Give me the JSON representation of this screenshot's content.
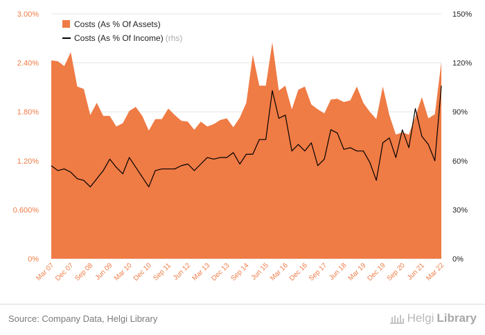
{
  "chart_data": {
    "type": "area+line",
    "legend": {
      "position": "top-left",
      "items": [
        {
          "label": "Costs (As % Of Assets)",
          "color": "#ef7b45",
          "kind": "area"
        },
        {
          "label": "Costs (As % Of Income)",
          "suffix": "(rhs)",
          "color": "#000000",
          "kind": "line"
        }
      ]
    },
    "left_axis": {
      "ticks": [
        "0%",
        "0.600%",
        "1.20%",
        "1.80%",
        "2.40%",
        "3.00%"
      ],
      "ylim": [
        0,
        3.0
      ]
    },
    "right_axis": {
      "ticks": [
        "0%",
        "30%",
        "60%",
        "90%",
        "120%",
        "150%"
      ],
      "ylim": [
        0,
        150
      ]
    },
    "x_tick_labels": [
      "Mar 07",
      "Dec 07",
      "Sep 08",
      "Jun 09",
      "Mar 10",
      "Dec 10",
      "Sep 11",
      "Jun 12",
      "Mar 13",
      "Dec 13",
      "Sep 14",
      "Jun 15",
      "Mar 16",
      "Dec 16",
      "Sep 17",
      "Jun 18",
      "Mar 19",
      "Dec 19",
      "Sep 20",
      "Jun 21",
      "Mar 22"
    ],
    "x": [
      "Mar 07",
      "Jun 07",
      "Sep 07",
      "Dec 07",
      "Mar 08",
      "Jun 08",
      "Sep 08",
      "Dec 08",
      "Mar 09",
      "Jun 09",
      "Sep 09",
      "Dec 09",
      "Mar 10",
      "Jun 10",
      "Sep 10",
      "Dec 10",
      "Mar 11",
      "Jun 11",
      "Sep 11",
      "Dec 11",
      "Mar 12",
      "Jun 12",
      "Sep 12",
      "Dec 12",
      "Mar 13",
      "Jun 13",
      "Sep 13",
      "Dec 13",
      "Mar 14",
      "Jun 14",
      "Sep 14",
      "Dec 14",
      "Mar 15",
      "Jun 15",
      "Sep 15",
      "Dec 15",
      "Mar 16",
      "Jun 16",
      "Sep 16",
      "Dec 16",
      "Mar 17",
      "Jun 17",
      "Sep 17",
      "Dec 17",
      "Mar 18",
      "Jun 18",
      "Sep 18",
      "Dec 18",
      "Mar 19",
      "Jun 19",
      "Sep 19",
      "Dec 19",
      "Mar 20",
      "Jun 20",
      "Sep 20",
      "Dec 20",
      "Mar 21",
      "Jun 21",
      "Sep 21",
      "Dec 21",
      "Mar 22"
    ],
    "series": [
      {
        "name": "Costs (As % Of Assets)",
        "axis": "left",
        "type": "area",
        "color": "#ef7b45",
        "values": [
          2.43,
          2.42,
          2.36,
          2.53,
          2.11,
          2.08,
          1.76,
          1.91,
          1.75,
          1.75,
          1.62,
          1.66,
          1.81,
          1.86,
          1.75,
          1.57,
          1.71,
          1.71,
          1.84,
          1.76,
          1.69,
          1.68,
          1.58,
          1.68,
          1.62,
          1.65,
          1.7,
          1.72,
          1.61,
          1.73,
          1.91,
          2.5,
          2.12,
          2.12,
          2.65,
          2.06,
          2.12,
          1.83,
          2.07,
          2.11,
          1.89,
          1.83,
          1.78,
          1.95,
          1.96,
          1.92,
          1.94,
          2.11,
          1.91,
          1.8,
          1.71,
          2.11,
          1.76,
          1.52,
          1.55,
          1.52,
          1.74,
          1.98,
          1.72,
          1.77,
          2.41
        ]
      },
      {
        "name": "Costs (As % Of Income)",
        "axis": "right",
        "type": "line",
        "color": "#000000",
        "values": [
          57,
          54,
          55,
          53,
          49,
          48,
          44,
          49,
          54,
          61,
          56,
          52,
          62,
          56,
          50,
          44,
          54,
          55,
          55,
          55,
          57,
          58,
          54,
          58,
          62,
          61,
          62,
          62,
          65,
          58,
          64,
          64,
          73,
          73,
          103,
          86,
          88,
          66,
          70,
          66,
          71,
          57,
          61,
          79,
          77,
          67,
          68,
          66,
          66,
          59,
          48,
          71,
          74,
          62,
          79,
          68,
          92,
          75,
          70,
          60,
          106
        ]
      }
    ]
  },
  "footer": {
    "source": "Source: Company Data, Helgi Library",
    "brand_light": "Helgi",
    "brand_bold": "Library"
  }
}
